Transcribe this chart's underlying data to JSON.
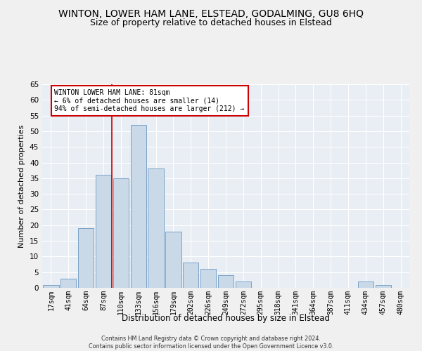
{
  "title": "WINTON, LOWER HAM LANE, ELSTEAD, GODALMING, GU8 6HQ",
  "subtitle": "Size of property relative to detached houses in Elstead",
  "xlabel": "Distribution of detached houses by size in Elstead",
  "ylabel": "Number of detached properties",
  "footnote": "Contains HM Land Registry data © Crown copyright and database right 2024.\nContains public sector information licensed under the Open Government Licence v3.0.",
  "bar_labels": [
    "17sqm",
    "41sqm",
    "64sqm",
    "87sqm",
    "110sqm",
    "133sqm",
    "156sqm",
    "179sqm",
    "202sqm",
    "226sqm",
    "249sqm",
    "272sqm",
    "295sqm",
    "318sqm",
    "341sqm",
    "364sqm",
    "387sqm",
    "411sqm",
    "434sqm",
    "457sqm",
    "480sqm"
  ],
  "bar_values": [
    1,
    3,
    19,
    36,
    35,
    52,
    38,
    18,
    8,
    6,
    4,
    2,
    0,
    0,
    0,
    0,
    0,
    0,
    2,
    1,
    0
  ],
  "bar_color": "#c9d9e8",
  "bar_edge_color": "#7ba3c8",
  "vline_x": 3.5,
  "vline_color": "#cc0000",
  "annotation_text": "WINTON LOWER HAM LANE: 81sqm\n← 6% of detached houses are smaller (14)\n94% of semi-detached houses are larger (212) →",
  "annotation_box_color": "#ffffff",
  "annotation_box_edge": "#cc0000",
  "ylim": [
    0,
    65
  ],
  "yticks": [
    0,
    5,
    10,
    15,
    20,
    25,
    30,
    35,
    40,
    45,
    50,
    55,
    60,
    65
  ],
  "background_color": "#e8eef4",
  "grid_color": "#ffffff",
  "title_fontsize": 10,
  "subtitle_fontsize": 9,
  "tick_fontsize": 7,
  "ylabel_fontsize": 8,
  "xlabel_fontsize": 8.5,
  "footnote_fontsize": 5.8
}
